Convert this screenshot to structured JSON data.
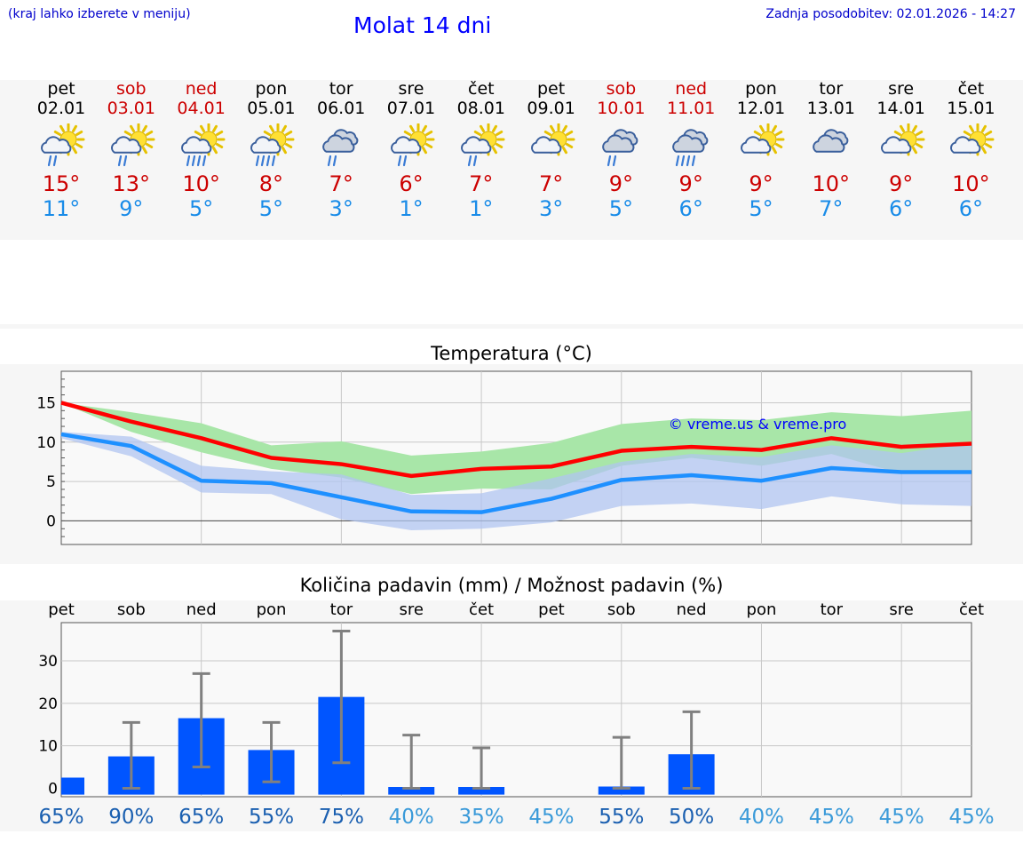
{
  "header": {
    "hint": "(kraj lahko izberete v meniju)",
    "title": "Molat 14 dni",
    "updated": "Zadnja posodobitev: 02.01.2026 - 14:27"
  },
  "days": [
    {
      "name": "pet",
      "date": "02.01",
      "weekend": false,
      "icon": "sun-cloud-rain-icon",
      "tmax": "15°",
      "tmin": "11°"
    },
    {
      "name": "sob",
      "date": "03.01",
      "weekend": true,
      "icon": "sun-cloud-rain-icon",
      "tmax": "13°",
      "tmin": "9°"
    },
    {
      "name": "ned",
      "date": "04.01",
      "weekend": true,
      "icon": "sun-cloud-heavy-rain-icon",
      "tmax": "10°",
      "tmin": "5°"
    },
    {
      "name": "pon",
      "date": "05.01",
      "weekend": false,
      "icon": "sun-cloud-heavy-rain-icon",
      "tmax": "8°",
      "tmin": "5°"
    },
    {
      "name": "tor",
      "date": "06.01",
      "weekend": false,
      "icon": "cloud-rain-icon",
      "tmax": "7°",
      "tmin": "3°"
    },
    {
      "name": "sre",
      "date": "07.01",
      "weekend": false,
      "icon": "sun-cloud-rain-icon",
      "tmax": "6°",
      "tmin": "1°"
    },
    {
      "name": "čet",
      "date": "08.01",
      "weekend": false,
      "icon": "sun-cloud-rain-icon",
      "tmax": "7°",
      "tmin": "1°"
    },
    {
      "name": "pet",
      "date": "09.01",
      "weekend": false,
      "icon": "sun-cloud-icon",
      "tmax": "7°",
      "tmin": "3°"
    },
    {
      "name": "sob",
      "date": "10.01",
      "weekend": true,
      "icon": "cloud-rain-icon",
      "tmax": "9°",
      "tmin": "5°"
    },
    {
      "name": "ned",
      "date": "11.01",
      "weekend": true,
      "icon": "cloud-heavy-rain-icon",
      "tmax": "9°",
      "tmin": "6°"
    },
    {
      "name": "pon",
      "date": "12.01",
      "weekend": false,
      "icon": "sun-cloud-icon",
      "tmax": "9°",
      "tmin": "5°"
    },
    {
      "name": "tor",
      "date": "13.01",
      "weekend": false,
      "icon": "cloud-icon",
      "tmax": "10°",
      "tmin": "7°"
    },
    {
      "name": "sre",
      "date": "14.01",
      "weekend": false,
      "icon": "sun-cloud-icon",
      "tmax": "9°",
      "tmin": "6°"
    },
    {
      "name": "čet",
      "date": "15.01",
      "weekend": false,
      "icon": "sun-cloud-icon",
      "tmax": "10°",
      "tmin": "6°"
    }
  ],
  "colors": {
    "max": "#ff0000",
    "min": "#1e90ff",
    "maxBand": "#a8e6a8",
    "minBand": "#b0c4f0",
    "overlap": "#7ec1a8",
    "bar": "#0055ff",
    "whisker": "#808080",
    "probDark": "#1a5fb0",
    "probLight": "#3a9ad9"
  },
  "chart_data": [
    {
      "type": "line",
      "title": "Temperatura (°C)",
      "watermark": "© vreme.us & vreme.pro",
      "xlabel": "",
      "ylabel": "",
      "ylim": [
        -3,
        19
      ],
      "yticks": [
        0,
        5,
        10,
        15
      ],
      "x": [
        0,
        1,
        2,
        3,
        4,
        5,
        6,
        7,
        8,
        9,
        10,
        11,
        12,
        13
      ],
      "series": [
        {
          "name": "max",
          "values": [
            15,
            12.6,
            10.5,
            8,
            7.2,
            5.7,
            6.6,
            6.9,
            8.9,
            9.4,
            9,
            10.5,
            9.4,
            9.8
          ],
          "band_low": [
            15,
            11.3,
            8.7,
            6.6,
            5.5,
            3.4,
            4.1,
            4,
            7,
            8,
            7,
            8.5,
            6,
            6
          ],
          "band_high": [
            15,
            13.8,
            12.4,
            9.6,
            10.1,
            8.3,
            8.8,
            9.9,
            12.3,
            13,
            12.8,
            13.8,
            13.3,
            14
          ]
        },
        {
          "name": "min",
          "values": [
            11,
            9.5,
            5.1,
            4.8,
            3,
            1.2,
            1.1,
            2.8,
            5.2,
            5.8,
            5.1,
            6.7,
            6.2,
            6.2
          ],
          "band_low": [
            10.5,
            8.2,
            3.6,
            3.4,
            0.2,
            -1.2,
            -1.0,
            -0.2,
            1.9,
            2.2,
            1.5,
            3.1,
            2.1,
            1.9
          ],
          "band_high": [
            11.3,
            10.7,
            7.0,
            6.3,
            5.9,
            3.3,
            3.5,
            5.4,
            7.5,
            8.5,
            8.1,
            9.6,
            8.6,
            9.9
          ]
        }
      ]
    },
    {
      "type": "bar",
      "title": "Količina padavin (mm) / Možnost padavin (%)",
      "categories": [
        "pet",
        "sob",
        "ned",
        "pon",
        "tor",
        "sre",
        "čet",
        "pet",
        "sob",
        "ned",
        "pon",
        "tor",
        "sre",
        "čet"
      ],
      "values": [
        2.5,
        7.5,
        16.5,
        9,
        21.5,
        0.3,
        0.3,
        0,
        0.4,
        8,
        0,
        0,
        0,
        0
      ],
      "err_low": [
        null,
        0,
        5,
        1.5,
        6,
        0,
        0,
        null,
        0,
        0,
        null,
        null,
        null,
        null
      ],
      "err_high": [
        null,
        15.5,
        27,
        15.5,
        37,
        12.5,
        9.5,
        null,
        12,
        18,
        null,
        null,
        null,
        null
      ],
      "probabilities": [
        "65%",
        "90%",
        "65%",
        "55%",
        "75%",
        "40%",
        "35%",
        "45%",
        "55%",
        "50%",
        "40%",
        "45%",
        "45%",
        "45%"
      ],
      "ylim": [
        -2,
        39
      ],
      "yticks": [
        0,
        10,
        20,
        30
      ]
    }
  ]
}
